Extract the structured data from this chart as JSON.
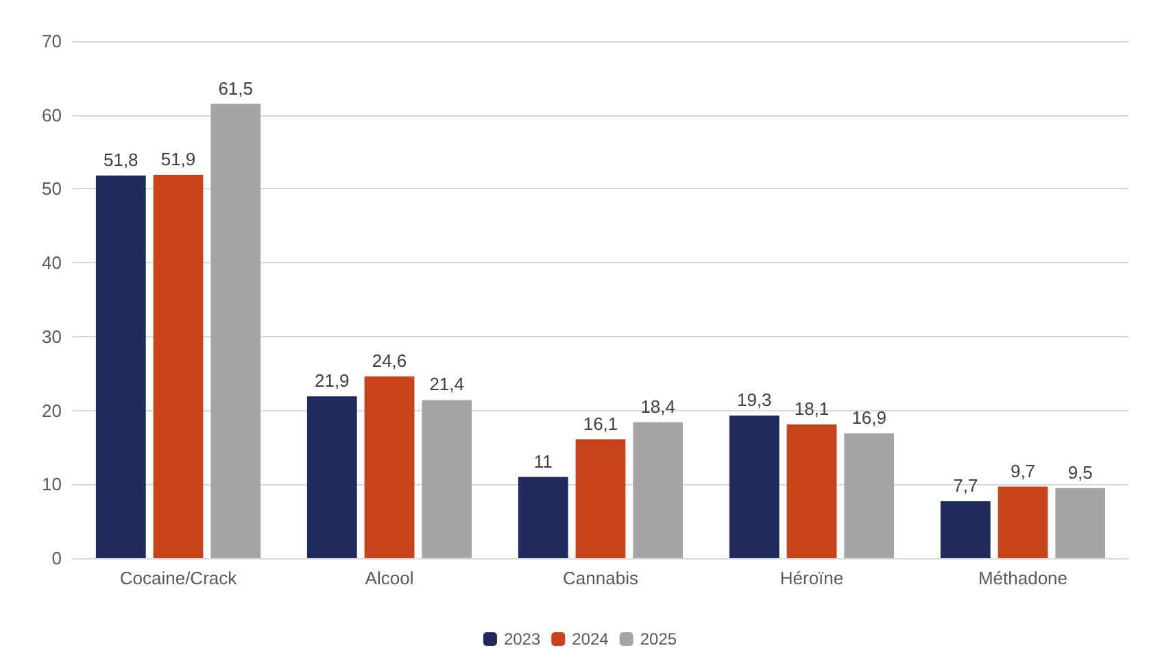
{
  "chart_data": {
    "type": "bar",
    "categories": [
      "Cocaine/Crack",
      "Alcool",
      "Cannabis",
      "Héroïne",
      "Méthadone"
    ],
    "series": [
      {
        "name": "2023",
        "color": "#1f2a5e",
        "values": [
          51.8,
          21.9,
          11,
          19.3,
          7.7
        ],
        "value_labels": [
          "51,8",
          "21,9",
          "11",
          "19,3",
          "7,7"
        ]
      },
      {
        "name": "2024",
        "color": "#c8431c",
        "values": [
          51.9,
          24.6,
          16.1,
          18.1,
          9.7
        ],
        "value_labels": [
          "51,9",
          "24,6",
          "16,1",
          "18,1",
          "9,7"
        ]
      },
      {
        "name": "2025",
        "color": "#a5a5a5",
        "values": [
          61.5,
          21.4,
          18.4,
          16.9,
          9.5
        ],
        "value_labels": [
          "61,5",
          "21,4",
          "18,4",
          "16,9",
          "9,5"
        ]
      }
    ],
    "ylim": [
      0,
      70
    ],
    "yticks": [
      0,
      10,
      20,
      30,
      40,
      50,
      60,
      70
    ],
    "grid": "y",
    "legend": "bottom"
  }
}
